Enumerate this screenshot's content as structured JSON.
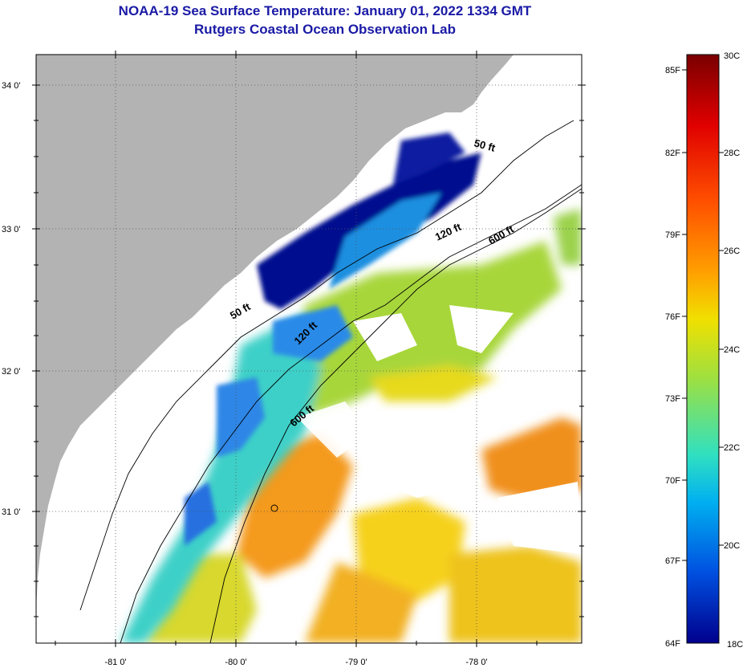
{
  "header": {
    "title_line1": "NOAA-19 Sea Surface Temperature:  January 01, 2022 1334 GMT",
    "title_line2": "Rutgers Coastal Ocean Observation Lab"
  },
  "map": {
    "lat_labels": [
      "34 0'",
      "33 0'",
      "32 0'",
      "31 0'"
    ],
    "lon_labels": [
      "-81 0'",
      "-80 0'",
      "-79 0'",
      "-78 0'"
    ],
    "contour_labels": [
      "50 ft",
      "120 ft",
      "600 ft",
      "50 ft",
      "120 ft",
      "600 ft"
    ],
    "colors": {
      "land": "#b3b3b3",
      "cloud": "#ffffff",
      "coastline": "#000000",
      "grid": "#555555"
    }
  },
  "colorbar": {
    "fahrenheit_labels": [
      "85F",
      "82F",
      "79F",
      "76F",
      "73F",
      "70F",
      "67F",
      "64F"
    ],
    "celsius_labels": [
      "30C",
      "28C",
      "26C",
      "24C",
      "22C",
      "20C",
      "18C"
    ],
    "gradient_stops": [
      "#7a0000",
      "#e00000",
      "#ff5000",
      "#ffa000",
      "#f0e000",
      "#9ee040",
      "#30e0c0",
      "#00b0f0",
      "#0050e0",
      "#00008c"
    ]
  }
}
